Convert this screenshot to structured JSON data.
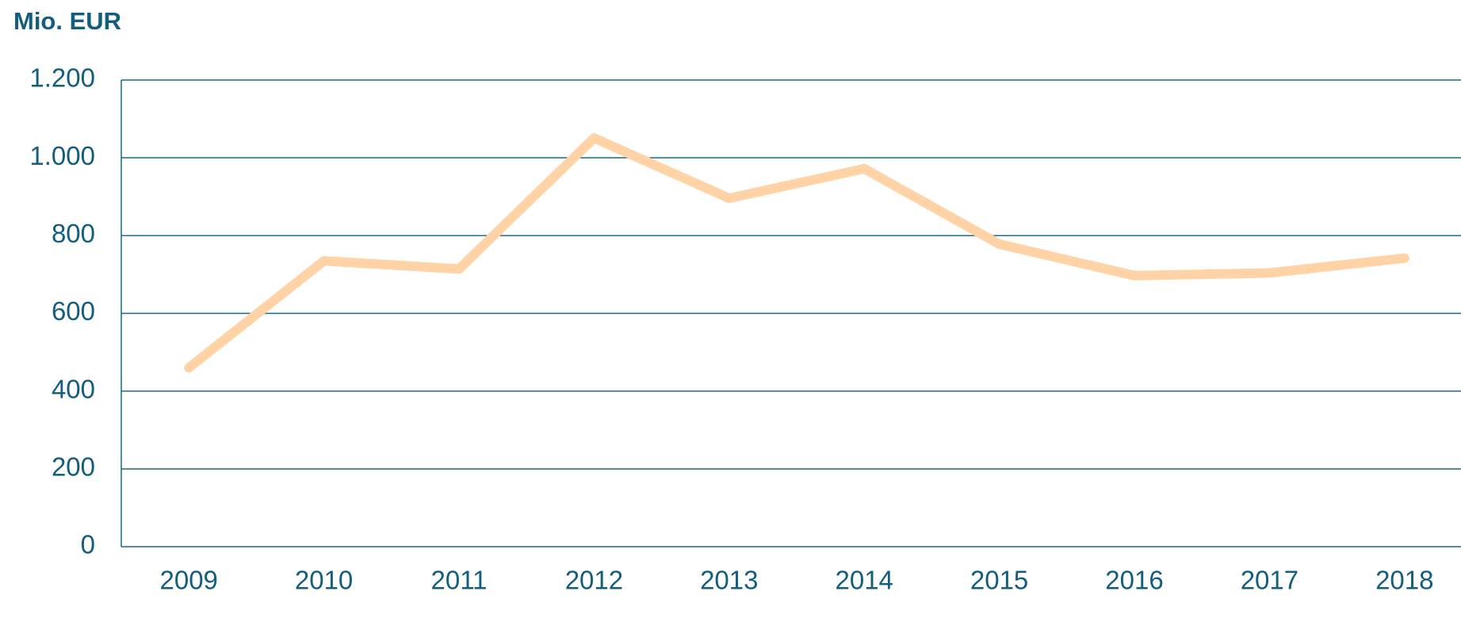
{
  "chart_data": {
    "type": "line",
    "title": "Mio. EUR",
    "categories": [
      "2009",
      "2010",
      "2011",
      "2012",
      "2013",
      "2014",
      "2015",
      "2016",
      "2017",
      "2018"
    ],
    "series": [
      {
        "color": "#ffd3a6",
        "values": [
          460,
          735,
          714,
          1051,
          896,
          972,
          778,
          697,
          704,
          742
        ]
      }
    ],
    "ylim": [
      0,
      1200
    ],
    "yticks": [
      0,
      200,
      400,
      600,
      800,
      {
        "value": 1000,
        "label": "1.000"
      },
      {
        "value": 1200,
        "label": "1.200"
      }
    ],
    "grid": true
  }
}
